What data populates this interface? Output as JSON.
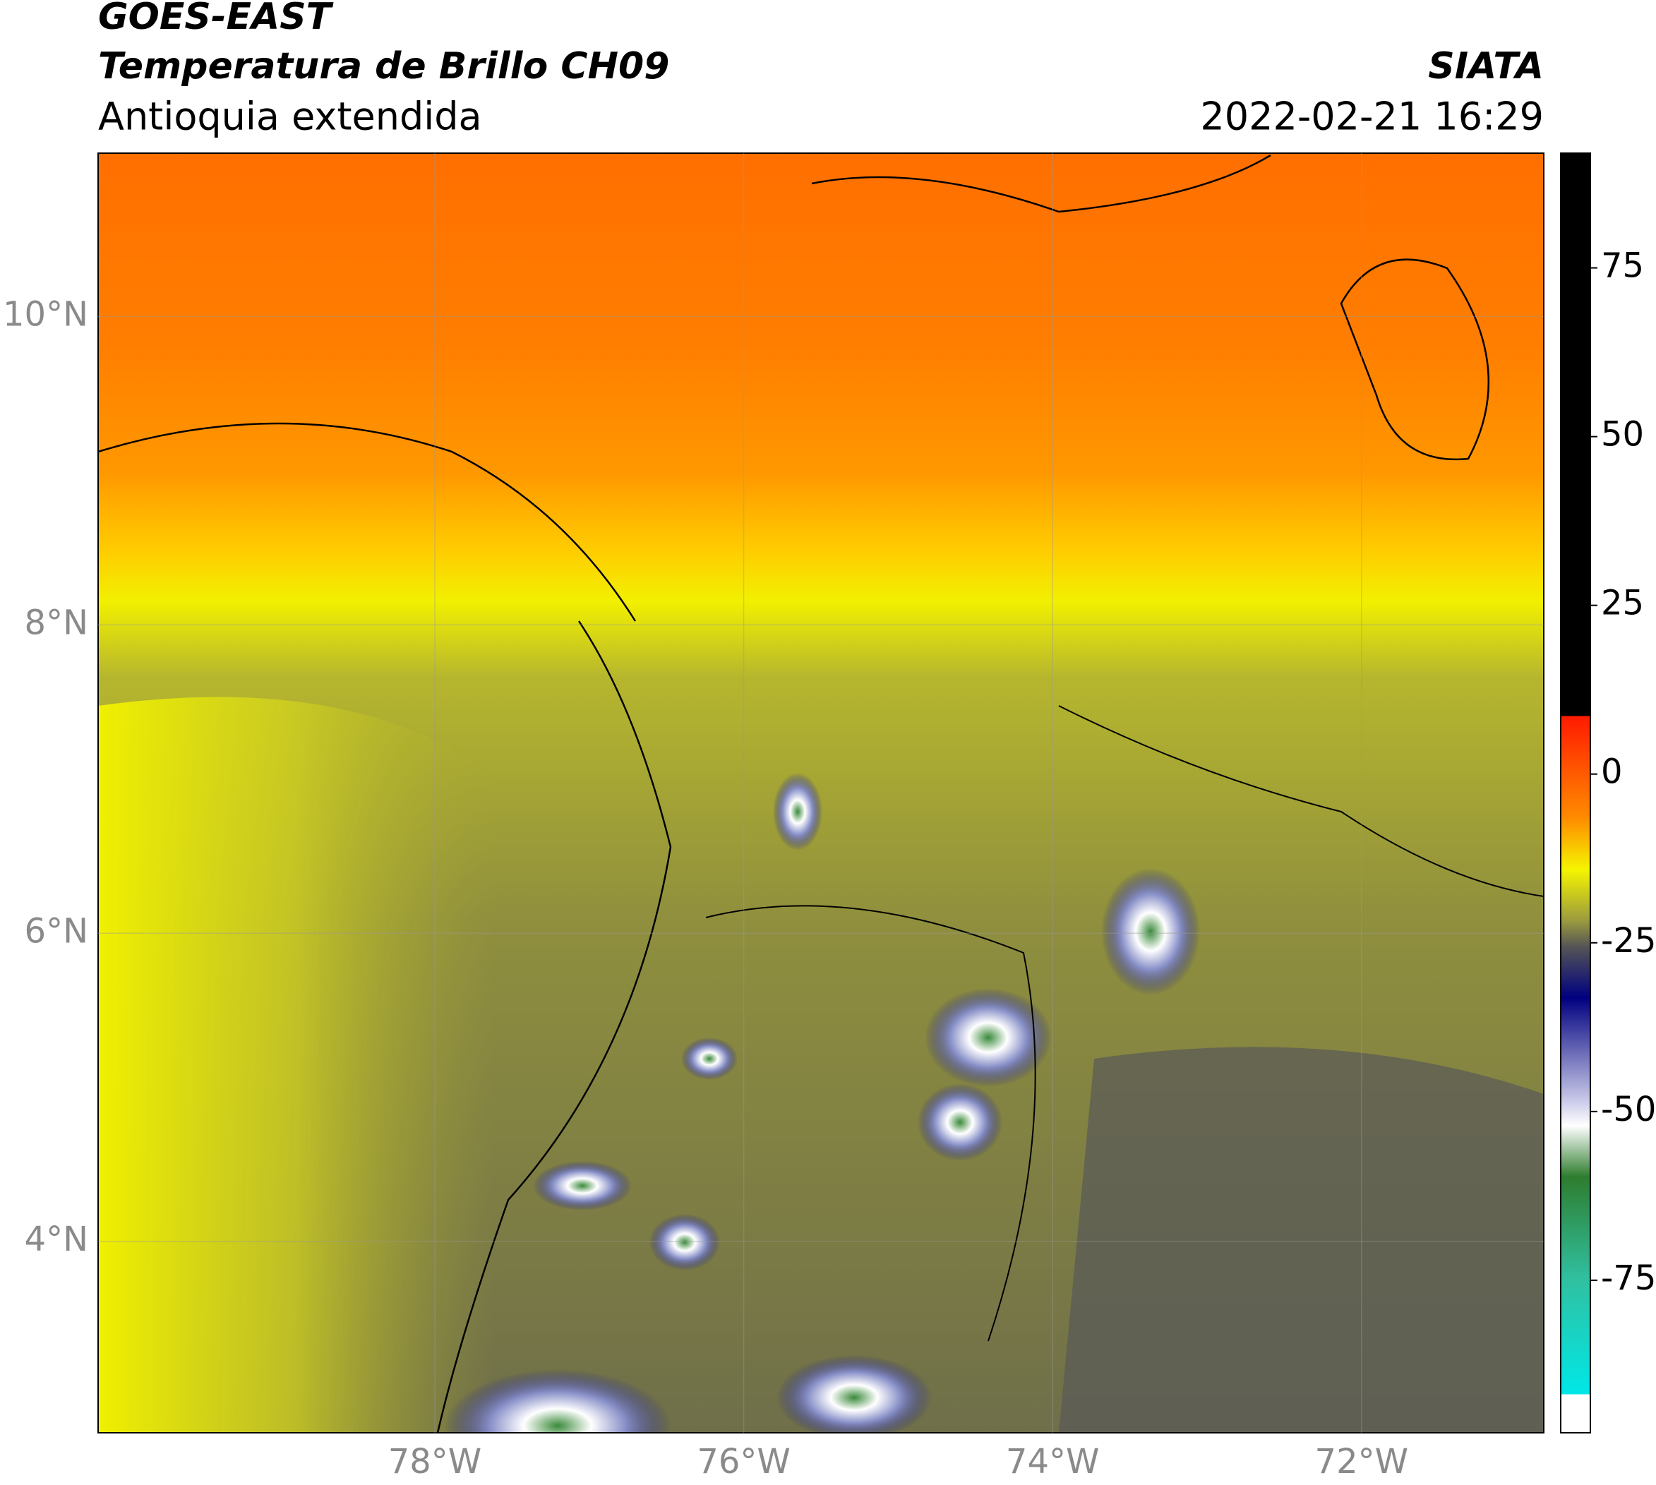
{
  "header": {
    "satellite": "GOES-EAST",
    "product": "Temperatura de Brillo CH09",
    "region": "Antioquia extendida",
    "agency": "SIATA",
    "datetime": "2022-02-21 16:29"
  },
  "map": {
    "lon_range": [
      -80.18,
      -70.82
    ],
    "lat_range": [
      2.76,
      11.06
    ],
    "lon_ticks": [
      {
        "value": -78,
        "label": "78°W"
      },
      {
        "value": -76,
        "label": "76°W"
      },
      {
        "value": -74,
        "label": "74°W"
      },
      {
        "value": -72,
        "label": "72°W"
      }
    ],
    "lat_ticks": [
      {
        "value": 10,
        "label": "10°N"
      },
      {
        "value": 8,
        "label": "8°N"
      },
      {
        "value": 6,
        "label": "6°N"
      },
      {
        "value": 4,
        "label": "4°N"
      }
    ],
    "grid": true
  },
  "colorbar": {
    "range": [
      -97.6,
      92
    ],
    "ticks": [
      75,
      50,
      25,
      0,
      -25,
      -50,
      -75
    ]
  }
}
